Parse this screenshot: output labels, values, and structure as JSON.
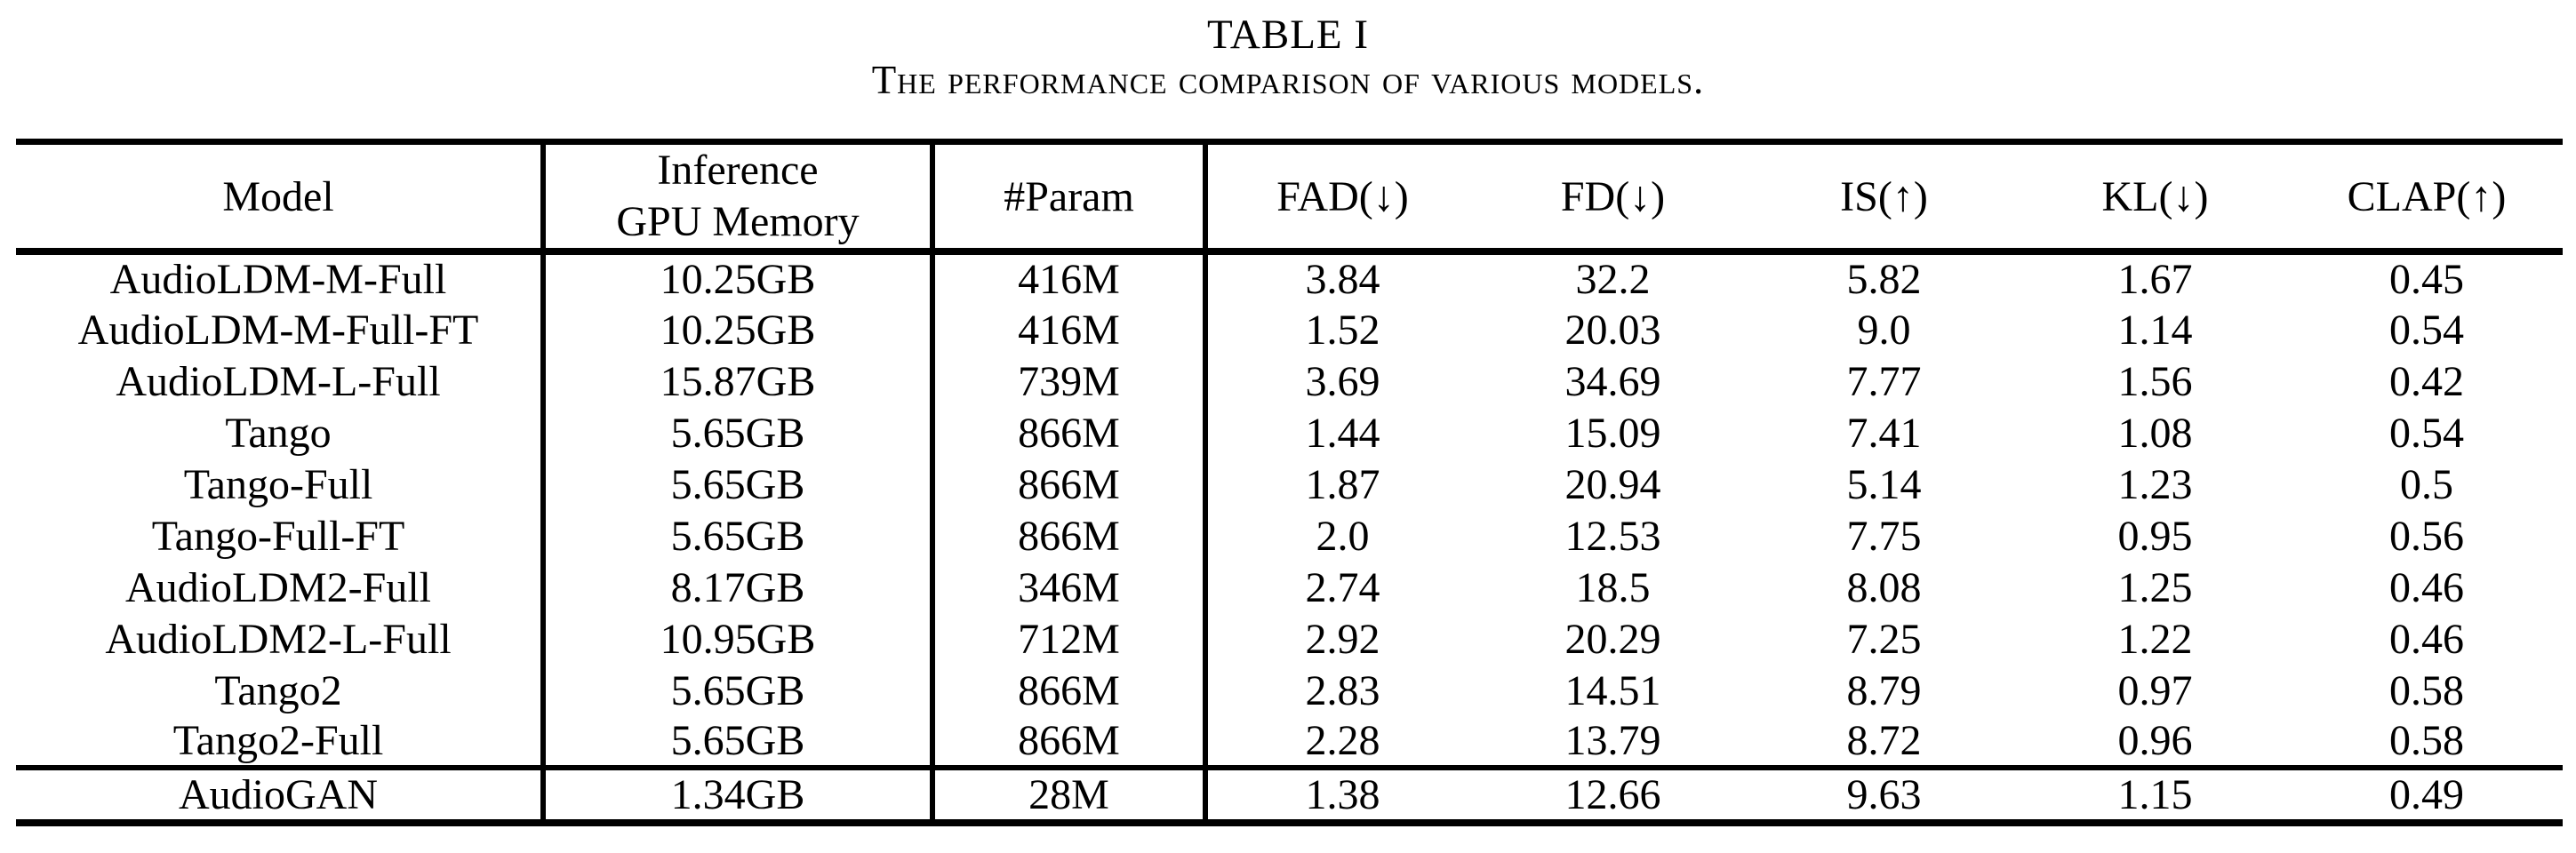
{
  "caption": {
    "label": "TABLE I",
    "title": "The performance comparison of various models."
  },
  "table": {
    "header": {
      "model": "Model",
      "gpu_memory_line1": "Inference",
      "gpu_memory_line2": "GPU Memory",
      "param": "#Param",
      "metrics": [
        "FAD(↓)",
        "FD(↓)",
        "IS(↑)",
        "KL(↓)",
        "CLAP(↑)"
      ]
    },
    "columns": [
      "Model",
      "Inference GPU Memory",
      "#Param",
      "FAD(↓)",
      "FD(↓)",
      "IS(↑)",
      "KL(↓)",
      "CLAP(↑)"
    ],
    "rows": [
      [
        "AudioLDM-M-Full",
        "10.25GB",
        "416M",
        "3.84",
        "32.2",
        "5.82",
        "1.67",
        "0.45"
      ],
      [
        "AudioLDM-M-Full-FT",
        "10.25GB",
        "416M",
        "1.52",
        "20.03",
        "9.0",
        "1.14",
        "0.54"
      ],
      [
        "AudioLDM-L-Full",
        "15.87GB",
        "739M",
        "3.69",
        "34.69",
        "7.77",
        "1.56",
        "0.42"
      ],
      [
        "Tango",
        "5.65GB",
        "866M",
        "1.44",
        "15.09",
        "7.41",
        "1.08",
        "0.54"
      ],
      [
        "Tango-Full",
        "5.65GB",
        "866M",
        "1.87",
        "20.94",
        "5.14",
        "1.23",
        "0.5"
      ],
      [
        "Tango-Full-FT",
        "5.65GB",
        "866M",
        "2.0",
        "12.53",
        "7.75",
        "0.95",
        "0.56"
      ],
      [
        "AudioLDM2-Full",
        "8.17GB",
        "346M",
        "2.74",
        "18.5",
        "8.08",
        "1.25",
        "0.46"
      ],
      [
        "AudioLDM2-L-Full",
        "10.95GB",
        "712M",
        "2.92",
        "20.29",
        "7.25",
        "1.22",
        "0.46"
      ],
      [
        "Tango2",
        "5.65GB",
        "866M",
        "2.83",
        "14.51",
        "8.79",
        "0.97",
        "0.58"
      ],
      [
        "Tango2-Full",
        "5.65GB",
        "866M",
        "2.28",
        "13.79",
        "8.72",
        "0.96",
        "0.58"
      ]
    ],
    "footer_rows": [
      [
        "AudioGAN",
        "1.34GB",
        "28M",
        "1.38",
        "12.66",
        "9.63",
        "1.15",
        "0.49"
      ]
    ],
    "colors": {
      "text": "#000000",
      "rule": "#000000",
      "background": "#ffffff"
    }
  }
}
